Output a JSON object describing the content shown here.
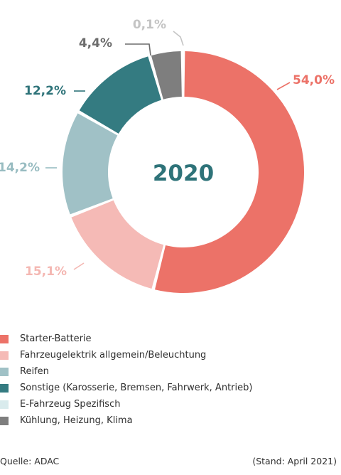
{
  "chart_data": {
    "type": "pie",
    "center_label": "2020",
    "series": [
      {
        "name": "Starter-Batterie",
        "value": 54.0,
        "label": "54,0%",
        "color": "#ec7268",
        "label_color": "#ec7268"
      },
      {
        "name": "Fahrzeugelektrik allgemein/Beleuchtung",
        "value": 15.1,
        "label": "15,1%",
        "color": "#f5bab6",
        "label_color": "#f4b7b2"
      },
      {
        "name": "Reifen",
        "value": 14.2,
        "label": "14,2%",
        "color": "#a0c1c6",
        "label_color": "#98bcc1"
      },
      {
        "name": "Sonstige (Karosserie, Bremsen, Fahrwerk, Antrieb)",
        "value": 12.2,
        "label": "12,2%",
        "color": "#347b81",
        "label_color": "#2e7379"
      },
      {
        "name": "E-Fahrzeug Spezifisch",
        "value": 0.1,
        "label": "0,1%",
        "color": "#d9ebed",
        "label_color": "#c4c4c4"
      },
      {
        "name": "Kühlung, Heizung, Klima",
        "value": 4.4,
        "label": "4,4%",
        "color": "#7e7e7e",
        "label_color": "#6d6d6d"
      }
    ],
    "draw_order": [
      0,
      1,
      2,
      3,
      5,
      4
    ],
    "center_label_color": "#2e7379"
  },
  "footer": {
    "source": "Quelle: ADAC",
    "stand": "(Stand: April 2021)"
  }
}
